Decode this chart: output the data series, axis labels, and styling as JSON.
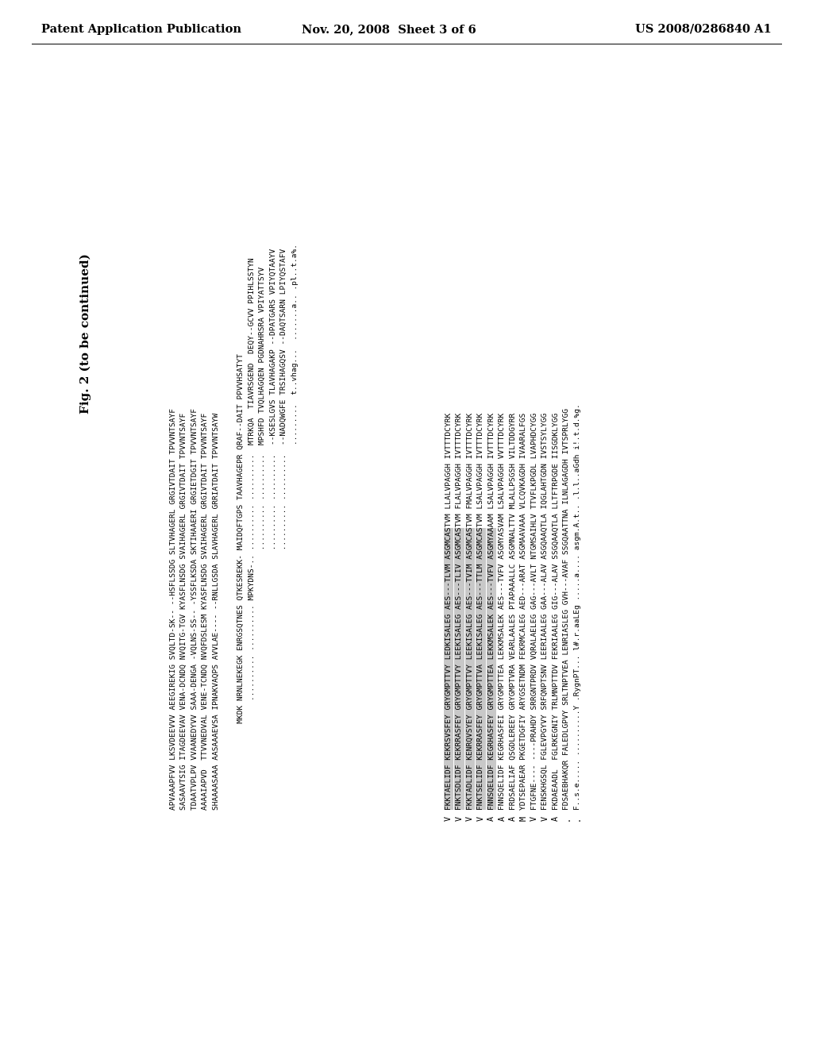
{
  "header_left": "Patent Application Publication",
  "header_center": "Nov. 20, 2008  Sheet 3 of 6",
  "header_right": "US 2008/0286840 A1",
  "fig_label": "Fig. 2 (to be continued)",
  "background_color": "#ffffff",
  "text_color": "#000000",
  "highlight_color": "#c8c8c8",
  "header_fontsize": 10.5,
  "seq_fontsize": 6.8,
  "figlabel_fontsize": 11,
  "block1_seqs": [
    "APVAAAPFVV LKSVDEEVVV AEEGIREKIG SVQLTD-SK-- --HSFLSSDG SLTVHAGERL GRGIVTDAIT TPVVNTSAYF",
    "SASAAVTSIG ITAGDEEVAV VENA-DCNDQ NVQITG-TGV KYASFLNSDG SVAIHAGERL GRGIVTDAIT TPVVNTSAYF",
    "TDAATVPLPV VVAANEDYVV SAAA-DENGA -VQLNS-SS-- -YSSFLKSDA SKTIHAAERI GRGIETDGIT TPVVNTSAYF",
    "AAAAIAPVD  TTVVNEDVAL VENE-TCNDQ NVQFDSLESM KYASFLNSDG SVAIHAGERL GRGIVTDAIT TPVVNTSAYF",
    "SHAAAASAAA AASAAAEVSA IPNAKVAQPS AVVLAE---- --RNLLGSDA SLAVHAGERL GRRIATDAIT TPVVNTSAYW"
  ],
  "block2_seqs": [
    "                   MKDK NRNLNEKEGK ENRGSQTNES QTKESREKK- MAIDQFTGPS TAAVHAGEPR QRAF--DAIT PPVVHSATYT",
    "                        .......... .......... MPKYDNS-.. .......... ..........  MTRKQA  TIAVRSGEND  DEQY--GCVV PPIHLSSTYN",
    "                                                         .......... ..........  MPSHFD TVQLHAGQEN PGDNAHRSRA VPIYATTSYV",
    "                                                         .......... ..........  --KSESLGVS TLAVHAGAKP --DPATGARS VPIYQTAAYV",
    "                                                         .......... ..........  --NADQWGFE TRSIHAGQSV --DAQTSARN LPIYQSTAFV",
    "                                                                                .........  t..vhag...  .......a.. .pl..t.a%."
  ],
  "block3_seqs": [
    "FKKTAELIDF KEKRSVSFEY GRYGMPTTVY LEDKISALEG AES---TLVM ASGMCASTVM LLALVPAGGH IVTTTDCYRK",
    "FNKTSDLIDF KEKRRASFEY GRYGMPTTVY LEEKISALEG AES---TLIV ASGMCASTVM FLALVPAGGH IVTTTDCYRK",
    "FKKTADLIDF KENRQVSYEY GRYGMPTTVY LEEKISALEG AES---TVIM ASGMCASTVM FMALVPAGGH IVTTTDCYRK",
    "FNKTSELIDF KEKRRASFEY GRYGMPTTVA LEEKISALEG AES---TTLM ASGMCASTVM LSALVPAGGH IVTTTDCYRK",
    "FNNSQELIDF KEGRHASFEY GRYGMPTTEA LEKKMSALEK AES---TVFV ASGMYAAAAM LSALVPAGGH IVTTTDCYRK",
    "FNNSQELIDF KEGRHASFEI GRYGMPTTEA LEKKMSALEK AES---TVFV ASGMYASVAM LSALVPAGGH VVTTTDCYRK",
    "FRDSAELIAF QSGDLEREEY GRYGMPTVRA VEARLAALES PTAPAAALLC ASGMNALTTV MLALLPSGSH VILTDDGYRR",
    "YDTSEPAEAR PKGETDGFIY ARYGSETNDM FEKRMCALEG AED---ARAT ASGMAAVAAA VLCQVKAGDH IVAARALFGS",
    "FTGFNE---- ----PRAHDY SRRGNTPRDV VQRALAELEG GAG---AVLT NTGMSAIHLV TTVFLKPGDL LVAPHDCYGG",
    "FENSKHGSQL FGLEVPGYVY SRFQNPTSNV LEERIAALEG GAA---ALAV ASGQAAQTLA IQGLAHTGDN IVSTSYLYGG",
    "FKDAEAADL  FGLRKEGNIY TRLMNPTTDV FEKRIAALEG GIG---ALAV SSGQAAQTLA LLTFTRPGDE IISGDKLYGG",
    "FDSAEBHAKQR FALEDLGPVY SRLTNPTVEA LENRIASLEG GVH---AVAF SSGQAATTNA ILNLAGAGDH IVTSPRLYGG",
    "F..s.e..... ..........Y .RygnPT... l#.r.aaLEg .....a.... asgm.A.t.. .l.l..aGdh i!.t.d.%g."
  ],
  "block3_labels": [
    "V",
    "V",
    "V",
    "V",
    "A",
    "A",
    "A",
    "M",
    "V",
    "V",
    "A",
    ".",
    "."
  ],
  "block3_highlight": [
    true,
    true,
    true,
    true,
    true,
    false,
    false,
    false,
    false,
    false,
    false,
    false,
    false
  ]
}
